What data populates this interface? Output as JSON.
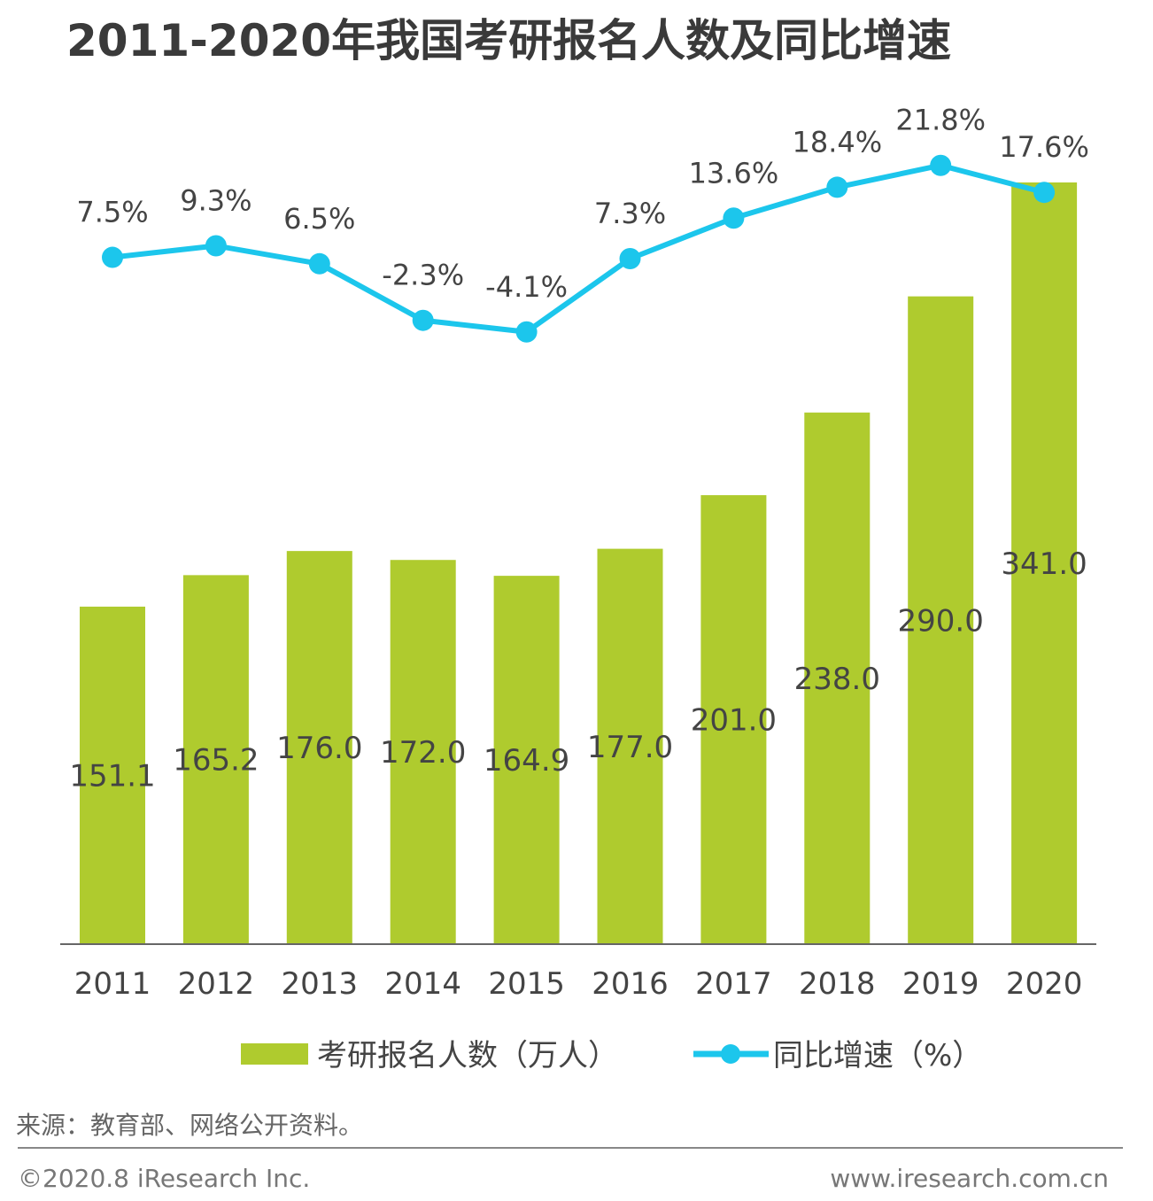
{
  "chart_data": {
    "type": "bar+line",
    "title": "2011-2020年我国考研报名人数及同比增速",
    "categories": [
      "2011",
      "2012",
      "2013",
      "2014",
      "2015",
      "2016",
      "2017",
      "2018",
      "2019",
      "2020"
    ],
    "series": [
      {
        "name": "考研报名人数（万人）",
        "type": "bar",
        "values": [
          151.1,
          165.2,
          176.0,
          172.0,
          164.9,
          177.0,
          201.0,
          238.0,
          290.0,
          341.0
        ],
        "labels": [
          "151.1",
          "165.2",
          "176.0",
          "172.0",
          "164.9",
          "177.0",
          "201.0",
          "238.0",
          "290.0",
          "341.0"
        ],
        "color": "#afcb2e"
      },
      {
        "name": "同比增速（%）",
        "type": "line",
        "values": [
          7.5,
          9.3,
          6.5,
          -2.3,
          -4.1,
          7.3,
          13.6,
          18.4,
          21.8,
          17.6
        ],
        "labels": [
          "7.5%",
          "9.3%",
          "6.5%",
          "-2.3%",
          "-4.1%",
          "7.3%",
          "13.6%",
          "18.4%",
          "21.8%",
          "17.6%"
        ],
        "color": "#1cc6ec"
      }
    ],
    "grid": false,
    "legend": "bottom"
  },
  "source": "来源：教育部、网络公开资料。",
  "footer": {
    "copyright": "©2020.8 iResearch Inc.",
    "website": "www.iresearch.com.cn"
  }
}
